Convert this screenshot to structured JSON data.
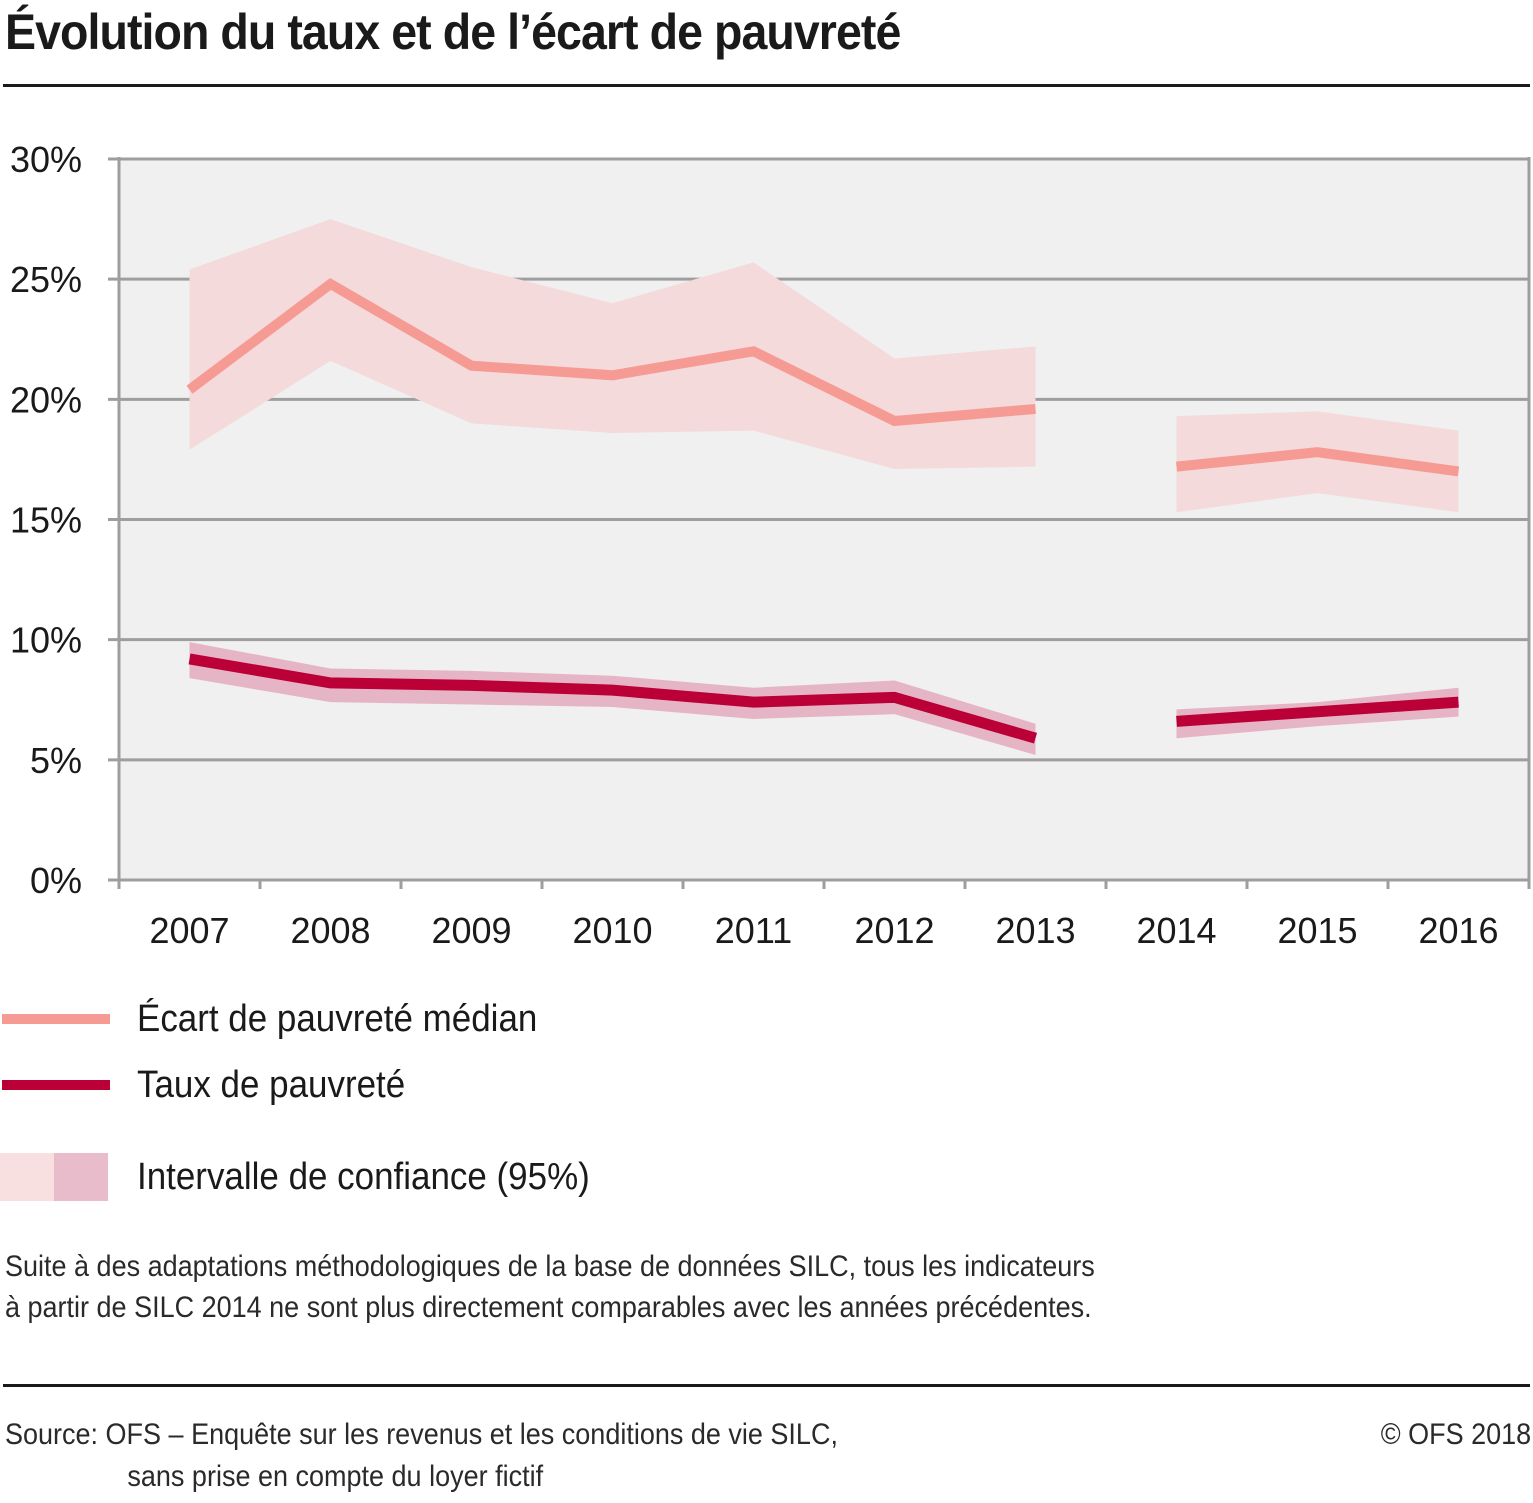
{
  "header": {
    "title": "Évolution du taux et de l’écart de pauvreté"
  },
  "chart_data": {
    "type": "line",
    "title": "Évolution du taux et de l’écart de pauvreté",
    "xlabel": "",
    "ylabel": "",
    "ylim": [
      0,
      30
    ],
    "yticks": [
      0,
      5,
      10,
      15,
      20,
      25,
      30
    ],
    "ytick_labels": [
      "0%",
      "5%",
      "10%",
      "15%",
      "20%",
      "25%",
      "30%"
    ],
    "categories": [
      "2007",
      "2008",
      "2009",
      "2010",
      "2011",
      "2012",
      "2013",
      "2014",
      "2015",
      "2016"
    ],
    "grid": true,
    "break_after": "2013",
    "series": [
      {
        "name": "Écart de pauvreté médian",
        "color": "#f69a94",
        "ci_color": "#f4dada",
        "values": [
          20.4,
          24.8,
          21.4,
          21.0,
          22.0,
          19.1,
          19.6,
          17.2,
          17.8,
          17.0
        ],
        "ci_upper": [
          25.4,
          27.5,
          25.5,
          24.0,
          25.7,
          21.7,
          22.2,
          19.3,
          19.5,
          18.7
        ],
        "ci_lower": [
          17.9,
          21.6,
          19.0,
          18.6,
          18.7,
          17.1,
          17.2,
          15.3,
          16.1,
          15.3
        ]
      },
      {
        "name": "Taux de pauvreté",
        "color": "#bb0038",
        "ci_color": "#e6b5c5",
        "values": [
          9.2,
          8.2,
          8.1,
          7.9,
          7.4,
          7.6,
          5.9,
          6.6,
          7.0,
          7.4
        ],
        "ci_upper": [
          9.9,
          8.8,
          8.7,
          8.5,
          8.0,
          8.3,
          6.5,
          7.1,
          7.4,
          8.0
        ],
        "ci_lower": [
          8.4,
          7.4,
          7.3,
          7.2,
          6.7,
          6.9,
          5.2,
          5.9,
          6.4,
          6.8
        ]
      }
    ],
    "legend": {
      "placement": "bottom-left",
      "entries": [
        {
          "label": "Écart de pauvreté médian",
          "color": "#f69a94"
        },
        {
          "label": "Taux de pauvreté",
          "color": "#bb0038"
        },
        {
          "label": "Intervalle de confiance (95%)",
          "colors": [
            "#f9e0e0",
            "#e9bccb"
          ]
        }
      ]
    }
  },
  "note": {
    "line1": "Suite à des adaptations méthodologiques de la base de données SILC, tous les indicateurs",
    "line2": "à partir de SILC 2014 ne sont plus directement comparables avec les années précédentes."
  },
  "footer": {
    "source_line1": "Source: OFS – Enquête sur les revenus et les conditions de vie SILC,",
    "source_line2": "sans prise en compte du loyer fictif",
    "copyright": "© OFS 2018"
  },
  "colors": {
    "plot_bg": "#f0f0f0",
    "grid": "#9e9e9e",
    "text": "#1a1a1a"
  }
}
